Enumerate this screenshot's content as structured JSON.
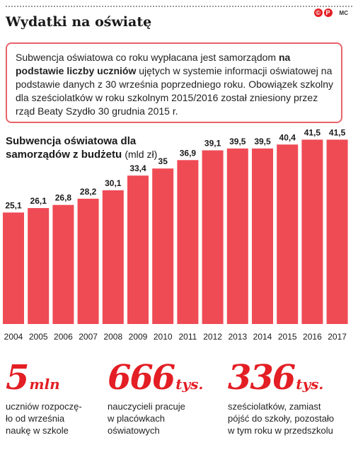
{
  "header": {
    "title": "Wydatki na oświatę",
    "logo_icon_glyph": "©",
    "logo_p_glyph": "P",
    "credit": "MC"
  },
  "info": {
    "text_before_bold": "Subwencja oświatowa co roku wypłacana jest samorządom",
    "bold": "na podstawie liczby uczniów",
    "text_after_bold": "ujętych w systemie informacji oświatowej na podstawie danych z 30 września poprzedniego roku. Obowiązek szkolny dla sześciolatków w roku szkolnym 2015/2016 został zniesiony przez rząd Beaty Szydło 30 grudnia 2015 r."
  },
  "chart_title": {
    "bold": "Subwencja oświatowa dla samorządów z budżetu",
    "unit": "(mld zł)"
  },
  "chart_data": {
    "type": "bar",
    "title": "Subwencja oświatowa dla samorządów z budżetu",
    "ylabel": "(mld zł)",
    "xlabel": "",
    "categories": [
      "2004",
      "2005",
      "2006",
      "2007",
      "2008",
      "2009",
      "2010",
      "2011",
      "2012",
      "2013",
      "2014",
      "2015",
      "2016",
      "2017"
    ],
    "values": [
      25.1,
      26.1,
      26.8,
      28.2,
      30.1,
      33.4,
      35,
      36.9,
      39.1,
      39.5,
      39.5,
      40.4,
      41.5,
      41.5
    ],
    "value_labels": [
      "25,1",
      "26,1",
      "26,8",
      "28,2",
      "30,1",
      "33,4",
      "35",
      "36,9",
      "39,1",
      "39,5",
      "39,5",
      "40,4",
      "41,5",
      "41,5"
    ],
    "grid": false,
    "legend": "none",
    "bar_color": "#ef4b55"
  },
  "stats": [
    {
      "number": "5",
      "unit": "mln",
      "desc": "uczniów rozpoczę-\nło od września\nnaukę w szkole"
    },
    {
      "number": "666",
      "unit": "tys.",
      "desc": "nauczycieli pracuje\nw placówkach\noświatowych"
    },
    {
      "number": "336",
      "unit": "tys.",
      "desc": "sześciolatków, zamiast\npójść do szkoły, pozostało\nw tym roku w przedszkolu"
    }
  ],
  "colors": {
    "accent": "#e31e24",
    "bar": "#ef4b55",
    "box_border": "#e8636c"
  }
}
